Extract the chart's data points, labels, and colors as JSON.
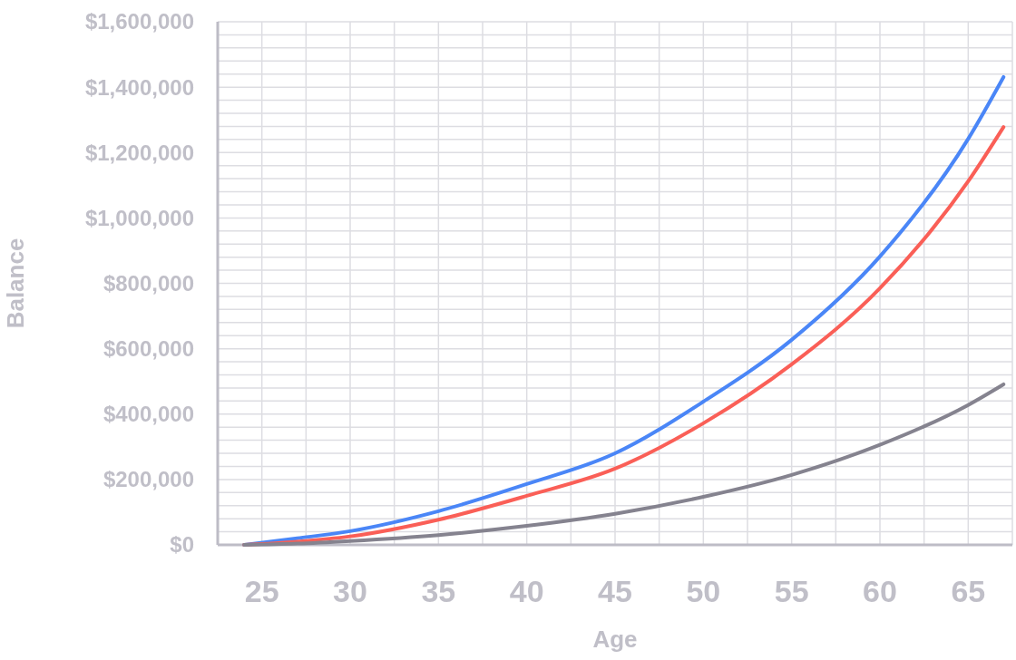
{
  "chart_data": {
    "type": "line",
    "xlabel": "Age",
    "ylabel": "Balance",
    "x": [
      24,
      27,
      30,
      35,
      40,
      45,
      50,
      55,
      60,
      65,
      67
    ],
    "series": [
      {
        "color": "#4a86f7",
        "values": [
          0,
          20000,
          42000,
          103000,
          186000,
          280000,
          438000,
          627000,
          882000,
          1242000,
          1431000
        ]
      },
      {
        "color": "#fa5f57",
        "values": [
          0,
          10000,
          26000,
          77000,
          150000,
          233000,
          372000,
          552000,
          785000,
          1112000,
          1278000
        ]
      },
      {
        "color": "#85838f",
        "values": [
          0,
          4000,
          12000,
          30000,
          58000,
          95000,
          147000,
          214000,
          306000,
          428000,
          491000
        ]
      }
    ],
    "xlim": [
      22.5,
      67.5
    ],
    "xticks": [
      {
        "value": 22.5,
        "label": null
      },
      25,
      {
        "value": 27.5,
        "label": null
      },
      30,
      {
        "value": 32.5,
        "label": null
      },
      35,
      {
        "value": 37.5,
        "label": null
      },
      40,
      {
        "value": 42.5,
        "label": null
      },
      45,
      {
        "value": 47.5,
        "label": null
      },
      50,
      {
        "value": 52.5,
        "label": null
      },
      55,
      {
        "value": 57.5,
        "label": null
      },
      60,
      {
        "value": 62.5,
        "label": null
      },
      65,
      {
        "value": 67.5,
        "label": null
      }
    ],
    "ylim": [
      0,
      1600000
    ],
    "yticks": [
      {
        "value": 0,
        "label": "$0"
      },
      {
        "value": 40000,
        "label": null
      },
      {
        "value": 80000,
        "label": null
      },
      {
        "value": 120000,
        "label": null
      },
      {
        "value": 160000,
        "label": null
      },
      {
        "value": 200000,
        "label": "$200,000"
      },
      {
        "value": 240000,
        "label": null
      },
      {
        "value": 280000,
        "label": null
      },
      {
        "value": 320000,
        "label": null
      },
      {
        "value": 360000,
        "label": null
      },
      {
        "value": 400000,
        "label": "$400,000"
      },
      {
        "value": 440000,
        "label": null
      },
      {
        "value": 480000,
        "label": null
      },
      {
        "value": 520000,
        "label": null
      },
      {
        "value": 560000,
        "label": null
      },
      {
        "value": 600000,
        "label": "$600,000"
      },
      {
        "value": 640000,
        "label": null
      },
      {
        "value": 680000,
        "label": null
      },
      {
        "value": 720000,
        "label": null
      },
      {
        "value": 760000,
        "label": null
      },
      {
        "value": 800000,
        "label": "$800,000"
      },
      {
        "value": 840000,
        "label": null
      },
      {
        "value": 880000,
        "label": null
      },
      {
        "value": 920000,
        "label": null
      },
      {
        "value": 960000,
        "label": null
      },
      {
        "value": 1000000,
        "label": "$1,000,000"
      },
      {
        "value": 1040000,
        "label": null
      },
      {
        "value": 1080000,
        "label": null
      },
      {
        "value": 1120000,
        "label": null
      },
      {
        "value": 1160000,
        "label": null
      },
      {
        "value": 1200000,
        "label": "$1,200,000"
      },
      {
        "value": 1240000,
        "label": null
      },
      {
        "value": 1280000,
        "label": null
      },
      {
        "value": 1320000,
        "label": null
      },
      {
        "value": 1360000,
        "label": null
      },
      {
        "value": 1400000,
        "label": "$1,400,000"
      },
      {
        "value": 1440000,
        "label": null
      },
      {
        "value": 1480000,
        "label": null
      },
      {
        "value": 1520000,
        "label": null
      },
      {
        "value": 1560000,
        "label": null
      },
      {
        "value": 1600000,
        "label": "$1,600,000"
      }
    ],
    "grid": true,
    "marker": "none",
    "line_style": "solid"
  }
}
